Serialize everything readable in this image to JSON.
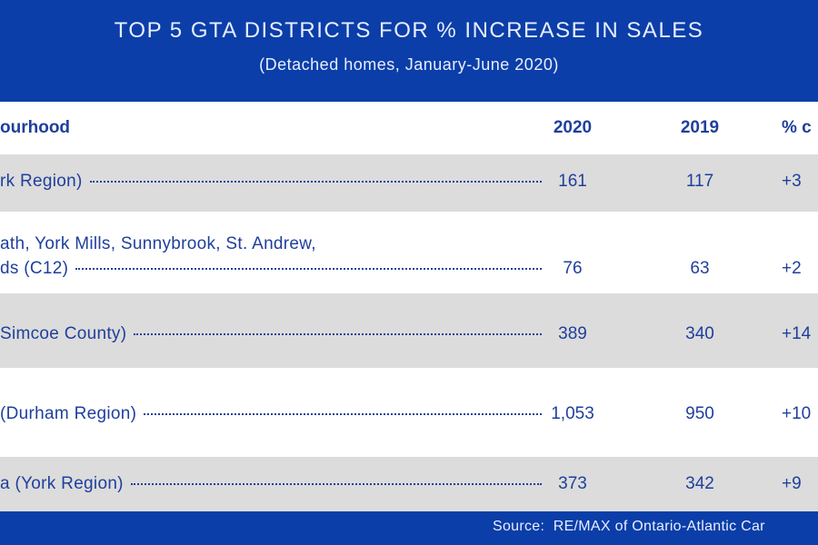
{
  "header": {
    "title": "TOP 5 GTA DISTRICTS FOR % INCREASE IN SALES",
    "subtitle": "(Detached homes, January-June 2020)"
  },
  "table": {
    "columns": [
      "ourhood",
      "2020",
      "2019",
      "% c"
    ],
    "rows": [
      {
        "lines": [
          "rk Region)"
        ],
        "cells": [
          "161",
          "117",
          "+3"
        ]
      },
      {
        "lines": [
          "ath, York Mills, Sunnybrook, St. Andrew,",
          "ds (C12)"
        ],
        "cells": [
          "76",
          "63",
          "+2"
        ]
      },
      {
        "lines": [
          "Simcoe County)"
        ],
        "cells": [
          "389",
          "340",
          "+14"
        ]
      },
      {
        "lines": [
          "(Durham Region)"
        ],
        "cells": [
          "1,053",
          "950",
          "+10"
        ]
      },
      {
        "lines": [
          "a (York Region)"
        ],
        "cells": [
          "373",
          "342",
          "+9"
        ]
      }
    ]
  },
  "footer": {
    "source": "Source:  RE/MAX of Ontario-Atlantic Car"
  }
}
